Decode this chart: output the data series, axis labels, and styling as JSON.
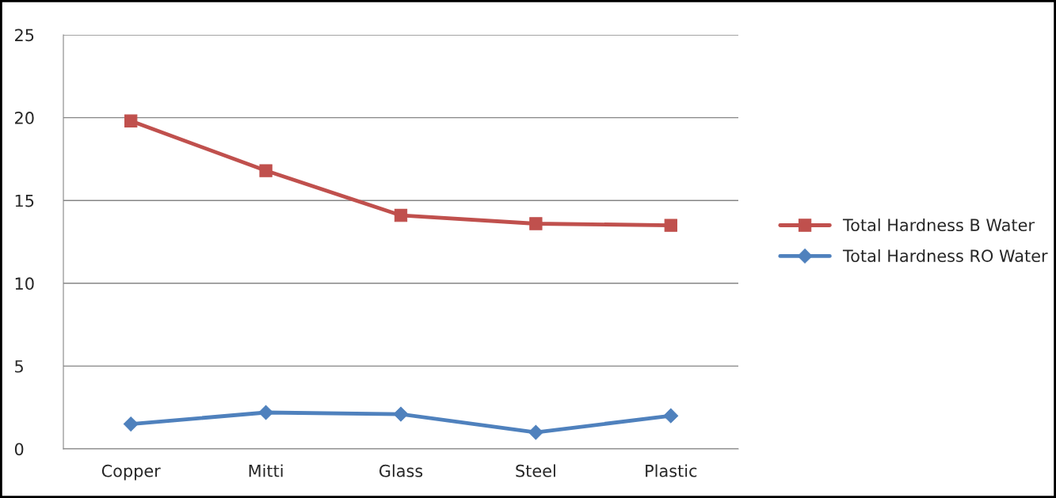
{
  "chart_data": {
    "type": "line",
    "categories": [
      "Copper",
      "Mitti",
      "Glass",
      "Steel",
      "Plastic"
    ],
    "series": [
      {
        "name": "Total Hardness B Water",
        "color": "#c0504d",
        "marker": "square",
        "values": [
          19.8,
          16.8,
          14.1,
          13.6,
          13.5
        ]
      },
      {
        "name": "Total Hardness RO Water",
        "color": "#4f81bd",
        "marker": "diamond",
        "values": [
          1.5,
          2.2,
          2.1,
          1.0,
          2.0
        ]
      }
    ],
    "ylim": [
      0,
      25
    ],
    "yticks": [
      0,
      5,
      10,
      15,
      20,
      25
    ],
    "grid": "y",
    "legend": "right",
    "line_style": "solid"
  }
}
